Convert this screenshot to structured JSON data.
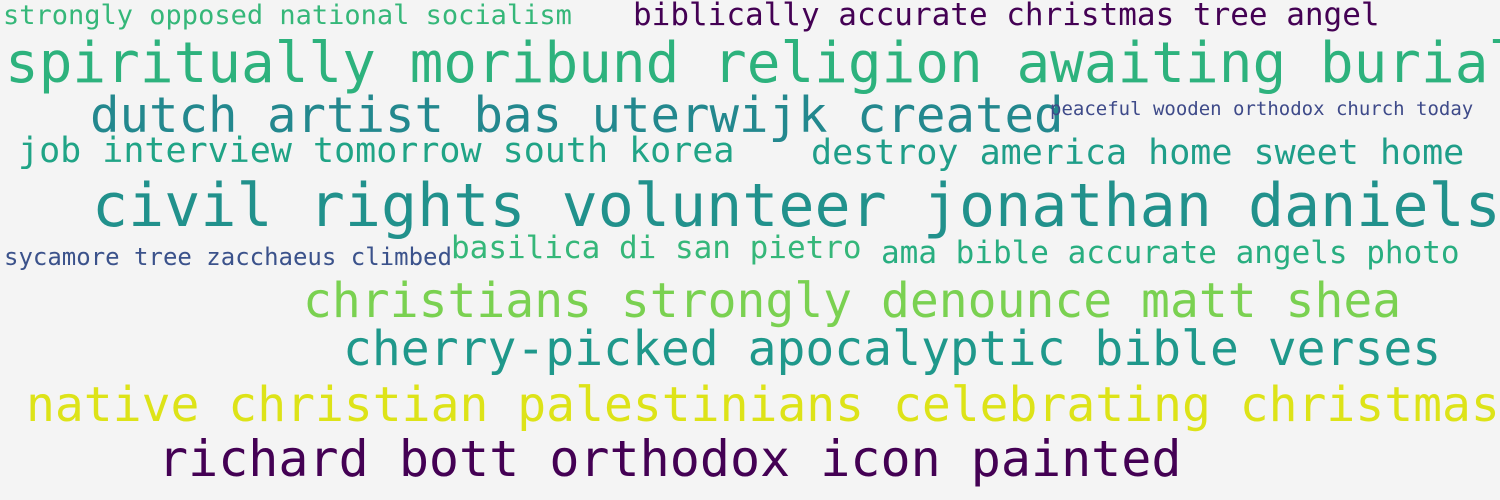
{
  "word_cloud": {
    "background_color": "#f4f4f4",
    "phrases": [
      {
        "text": "strongly opposed national socialism",
        "color": "#35b779"
      },
      {
        "text": "biblically accurate christmas tree angel",
        "color": "#440154"
      },
      {
        "text": "spiritually moribund religion awaiting burial",
        "color": "#2db27d"
      },
      {
        "text": "dutch artist bas uterwijk created",
        "color": "#23888e"
      },
      {
        "text": "peaceful wooden orthodox church today",
        "color": "#3e4a89"
      },
      {
        "text": "job interview tomorrow south korea",
        "color": "#20a486"
      },
      {
        "text": "destroy america home sweet home",
        "color": "#1f9e89"
      },
      {
        "text": "civil rights volunteer jonathan daniels",
        "color": "#21918c"
      },
      {
        "text": "sycamore tree zacchaeus climbed",
        "color": "#3b528b"
      },
      {
        "text": "basilica di san pietro",
        "color": "#35b779"
      },
      {
        "text": "ama bible accurate angels photo",
        "color": "#28ae80"
      },
      {
        "text": "christians strongly denounce matt shea",
        "color": "#7ad151"
      },
      {
        "text": "cherry-picked apocalyptic bible verses",
        "color": "#1f988b"
      },
      {
        "text": "native christian palestinians celebrating christmas",
        "color": "#dde318"
      },
      {
        "text": "richard bott orthodox icon painted",
        "color": "#440154"
      }
    ]
  }
}
